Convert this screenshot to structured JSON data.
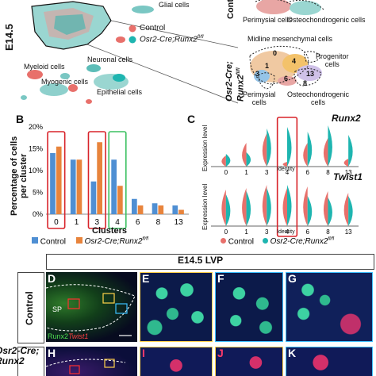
{
  "panelA": {
    "stage_label": "E14.5",
    "legend": [
      {
        "label": "Control",
        "color": "#e8706b"
      },
      {
        "label": "Osr2-Cre;Runx2",
        "sup": "fl/fl",
        "color": "#1eb5b0"
      }
    ],
    "cluster_labels": [
      "Glial cells",
      "Neuronal cells",
      "Myeloid cells",
      "Myogenic cells",
      "Epithelial cells"
    ]
  },
  "panelA_right": {
    "side_top": "Contr",
    "side_bottom_line1": "Osr2-Cre;",
    "side_bottom_line2": "Runx2",
    "side_bottom_sup": "fl/fl",
    "top_labels": [
      "Perimysial cells",
      "Osteochondrogenic cells"
    ],
    "bottom_labels": {
      "midline": "Midline mesenchymal cells",
      "progenitor_l1": "Progenitor",
      "progenitor_l2": "cells",
      "perimysial_l1": "Perimysial",
      "perimysial_l2": "cells",
      "osteo_l1": "Osteochondrogenic",
      "osteo_l2": "cells"
    },
    "cluster_numbers": [
      "0",
      "4",
      "1",
      "3",
      "6",
      "13",
      "8"
    ]
  },
  "panelB": {
    "letter": "B",
    "ylabel_line1": "Percentage of cells",
    "ylabel_line2": "per cluster",
    "xlabel": "Clusters",
    "legend": [
      {
        "label": "Control",
        "color": "#4f8fd3"
      },
      {
        "label": "Osr2-Cre;Runx2",
        "sup": "fl/fl",
        "color": "#e8843c"
      }
    ]
  },
  "chart_data": {
    "type": "bar",
    "categories": [
      "0",
      "1",
      "3",
      "4",
      "6",
      "8",
      "13"
    ],
    "series": [
      {
        "name": "Control",
        "values": [
          14.0,
          12.5,
          7.5,
          12.5,
          3.5,
          2.5,
          2.0
        ]
      },
      {
        "name": "Osr2-Cre;Runx2fl/fl",
        "values": [
          15.5,
          12.5,
          16.5,
          6.5,
          2.0,
          2.0,
          1.0
        ]
      }
    ],
    "yticks": [
      "0%",
      "5%",
      "10%",
      "15%",
      "20%"
    ],
    "ylim": [
      0,
      20
    ],
    "highlights": [
      {
        "category": "0",
        "color": "#d8232a"
      },
      {
        "category": "3",
        "color": "#d8232a"
      },
      {
        "category": "4",
        "color": "#3cc060"
      }
    ]
  },
  "panelC": {
    "letter": "C",
    "gene1": "Runx2",
    "gene2": "Twist1",
    "ylabel": "Expression level",
    "x_categories": [
      "0",
      "1",
      "3",
      "4",
      "6",
      "8",
      "13"
    ],
    "identity_label": "Identity",
    "legend": [
      {
        "label": "Control",
        "color": "#e8706b"
      },
      {
        "label": "Osr2-Cre;Runx2",
        "sup": "fl/fl",
        "color": "#1eb5b0"
      }
    ]
  },
  "panelImages": {
    "title": "E14.5 LVP",
    "row1_label": "Control",
    "row2_label_l1": "Osr2-Cre;",
    "row2_label_l2": "Runx2",
    "letters": [
      "D",
      "E",
      "F",
      "G",
      "H",
      "I",
      "J",
      "K"
    ],
    "stain_runx2": "Runx2",
    "stain_twist1": "Twist1",
    "sp_label": "SP"
  }
}
